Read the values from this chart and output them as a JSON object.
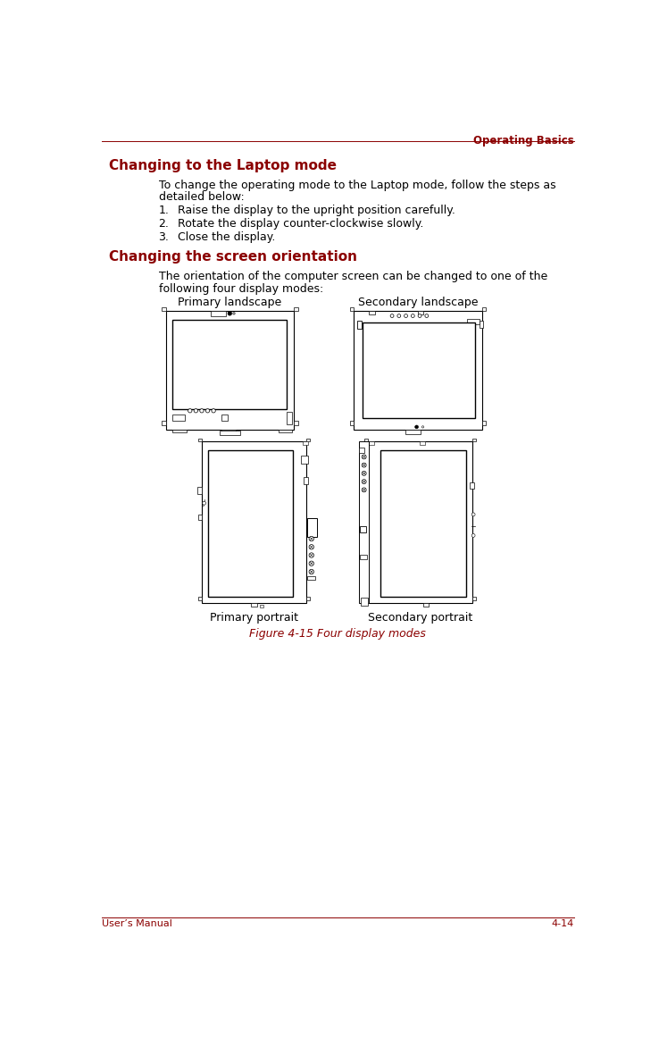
{
  "page_width": 7.38,
  "page_height": 11.72,
  "background_color": "#ffffff",
  "header_text": "Operating Basics",
  "header_color": "#8B0000",
  "footer_left": "User’s Manual",
  "footer_right": "4-14",
  "footer_color": "#8B0000",
  "section1_title": "Changing to the Laptop mode",
  "section1_color": "#8B0000",
  "section1_body_line1": "To change the operating mode to the Laptop mode, follow the steps as",
  "section1_body_line2": "detailed below:",
  "steps": [
    "Raise the display to the upright position carefully.",
    "Rotate the display counter-clockwise slowly.",
    "Close the display."
  ],
  "section2_title": "Changing the screen orientation",
  "section2_color": "#8B0000",
  "section2_body_line1": "The orientation of the computer screen can be changed to one of the",
  "section2_body_line2": "following four display modes:",
  "label_primary_landscape": "Primary landscape",
  "label_secondary_landscape": "Secondary landscape",
  "label_primary_portrait": "Primary portrait",
  "label_secondary_portrait": "Secondary portrait",
  "figure_caption": "Figure 4-15 Four display modes",
  "figure_caption_color": "#8B0000",
  "text_color": "#000000",
  "dc": "#000000"
}
